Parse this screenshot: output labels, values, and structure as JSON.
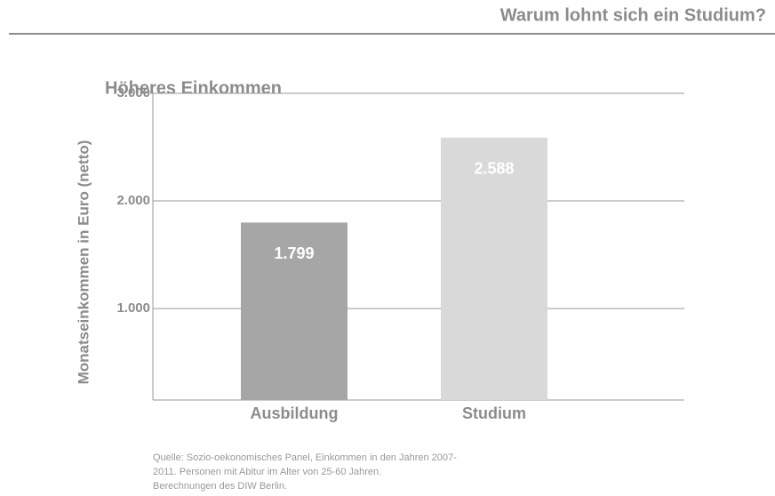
{
  "header": {
    "title": "Warum lohnt sich ein Studium?"
  },
  "chart_data": {
    "type": "bar",
    "title": "Höheres Einkommen",
    "y_label": "Monatseinkommen in Euro (netto)",
    "categories": [
      "Ausbildung",
      "Studium"
    ],
    "values": [
      1799,
      2588
    ],
    "value_labels": [
      "1.799",
      "2.588"
    ],
    "colors": [
      "#a6a6a6",
      "#d9d9d9"
    ],
    "ylim": [
      150,
      3000
    ],
    "yticks": [
      {
        "value": 1000,
        "label": "1.000"
      },
      {
        "value": 2000,
        "label": "2.000"
      },
      {
        "value": 3000,
        "label": "3.000"
      }
    ],
    "grid": true
  },
  "source": [
    "Quelle: Sozio-oekonomisches Panel, Einkommen in den Jahren 2007-",
    "2011. Personen mit Abitur im Alter von 25-60 Jahren.",
    "Berechnungen des DIW Berlin."
  ]
}
